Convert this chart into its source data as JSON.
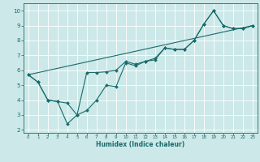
{
  "xlabel": "Humidex (Indice chaleur)",
  "bg_color": "#cce8e8",
  "line_color": "#1a6b6b",
  "grid_color": "#ffffff",
  "xlim": [
    -0.5,
    23.5
  ],
  "ylim": [
    1.8,
    10.5
  ],
  "xticks": [
    0,
    1,
    2,
    3,
    4,
    5,
    6,
    7,
    8,
    9,
    10,
    11,
    12,
    13,
    14,
    15,
    16,
    17,
    18,
    19,
    20,
    21,
    22,
    23
  ],
  "yticks": [
    2,
    3,
    4,
    5,
    6,
    7,
    8,
    9,
    10
  ],
  "line1_x": [
    0,
    1,
    2,
    3,
    4,
    5,
    6,
    7,
    8,
    9,
    10,
    11,
    12,
    13,
    14,
    15,
    16,
    17,
    18,
    19,
    20,
    21,
    22,
    23
  ],
  "line1_y": [
    5.7,
    5.2,
    4.0,
    3.9,
    2.4,
    3.0,
    5.85,
    5.85,
    5.9,
    6.0,
    6.6,
    6.4,
    6.6,
    6.8,
    7.5,
    7.4,
    7.4,
    8.0,
    9.1,
    10.0,
    9.0,
    8.8,
    8.8,
    9.0
  ],
  "line2_x": [
    0,
    1,
    2,
    3,
    4,
    5,
    6,
    7,
    8,
    9,
    10,
    11,
    12,
    13,
    14,
    15,
    16,
    17,
    18,
    19,
    20,
    21,
    22,
    23
  ],
  "line2_y": [
    5.7,
    5.2,
    4.0,
    3.9,
    3.8,
    3.0,
    3.3,
    4.0,
    5.0,
    4.9,
    6.5,
    6.3,
    6.6,
    6.7,
    7.5,
    7.4,
    7.4,
    8.0,
    9.1,
    10.0,
    9.0,
    8.8,
    8.8,
    9.0
  ],
  "line3_x": [
    0,
    23
  ],
  "line3_y": [
    5.7,
    9.0
  ]
}
